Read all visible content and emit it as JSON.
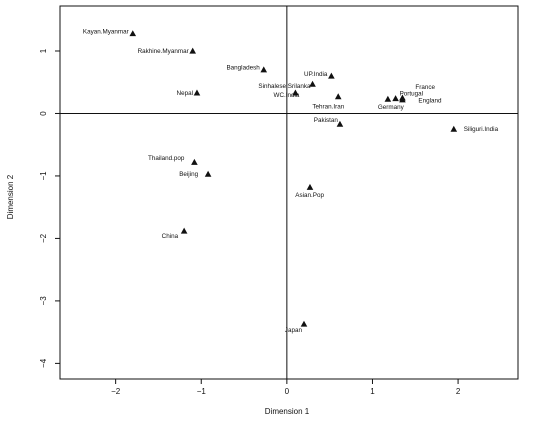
{
  "chart_data": {
    "type": "scatter",
    "xlabel": "Dimension 1",
    "ylabel": "Dimension 2",
    "xlim": [
      -2.65,
      2.7
    ],
    "ylim": [
      -4.25,
      1.72
    ],
    "x_ticks": [
      -2,
      -1,
      0,
      1,
      2
    ],
    "x_tick_labels": [
      "−2",
      "−1",
      "0",
      "1",
      "2"
    ],
    "y_ticks": [
      1,
      0,
      -1,
      -2,
      -3,
      -4
    ],
    "y_tick_labels": [
      "1",
      "0",
      "−1",
      "−2",
      "−3",
      "−4"
    ],
    "reference_lines": {
      "x": 0,
      "y": 0
    },
    "marker": "triangle",
    "grid": false,
    "points": [
      {
        "label": "Kayan.Myanmar",
        "x": -1.8,
        "y": 1.28
      },
      {
        "label": "Rakhine.Myanmar",
        "x": -1.1,
        "y": 1.0
      },
      {
        "label": "Bangladesh",
        "x": -0.27,
        "y": 0.7
      },
      {
        "label": "Nepal",
        "x": -1.05,
        "y": 0.33
      },
      {
        "label": "UP.India",
        "x": 0.52,
        "y": 0.6
      },
      {
        "label": "Sinhalese.Srilanka",
        "x": 0.3,
        "y": 0.47
      },
      {
        "label": "WC.India",
        "x": 0.1,
        "y": 0.33
      },
      {
        "label": "Tehran.Iran",
        "x": 0.6,
        "y": 0.27
      },
      {
        "label": "France",
        "x": 1.35,
        "y": 0.25
      },
      {
        "label": "Portugal",
        "x": 1.27,
        "y": 0.24
      },
      {
        "label": "England",
        "x": 1.35,
        "y": 0.22
      },
      {
        "label": "Germany",
        "x": 1.18,
        "y": 0.23
      },
      {
        "label": "Pakistan",
        "x": 0.62,
        "y": -0.17
      },
      {
        "label": "Siliguri.India",
        "x": 1.95,
        "y": -0.25
      },
      {
        "label": "Thailand.pop",
        "x": -1.08,
        "y": -0.78
      },
      {
        "label": "Beijing",
        "x": -0.92,
        "y": -0.97
      },
      {
        "label": "Asian.Pop",
        "x": 0.27,
        "y": -1.18
      },
      {
        "label": "China",
        "x": -1.2,
        "y": -1.88
      },
      {
        "label": "Japan",
        "x": 0.2,
        "y": -3.37
      }
    ]
  }
}
